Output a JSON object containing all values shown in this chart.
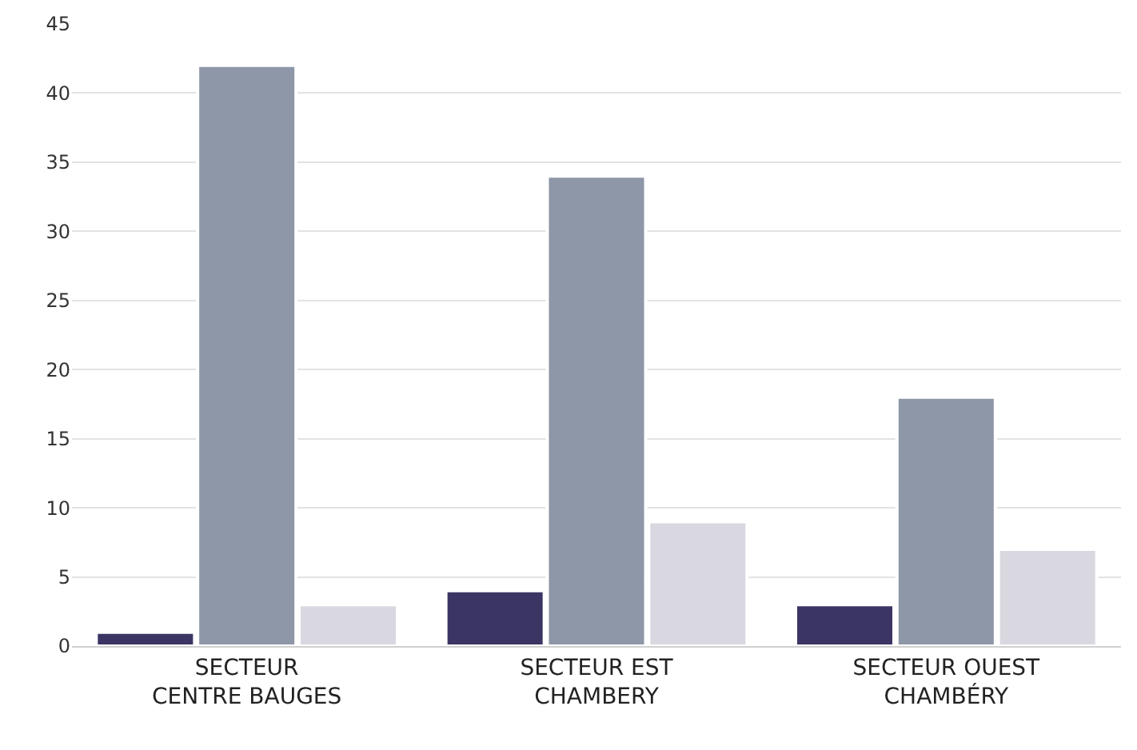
{
  "chart_data": {
    "type": "bar",
    "categories": [
      "SECTEUR\nCENTRE BAUGES",
      "SECTEUR EST\nCHAMBERY",
      "SECTEUR OUEST\nCHAMBÉRY"
    ],
    "series": [
      {
        "color": "#3b3564",
        "values": [
          1,
          4,
          3
        ]
      },
      {
        "color": "#8e97a8",
        "values": [
          42,
          34,
          18
        ]
      },
      {
        "color": "#d9d8e0",
        "values": [
          3,
          9,
          7
        ]
      }
    ],
    "ylim": [
      0,
      45
    ],
    "yticks": [
      0,
      5,
      10,
      15,
      20,
      25,
      30,
      35,
      40,
      45
    ],
    "grid": "y"
  }
}
